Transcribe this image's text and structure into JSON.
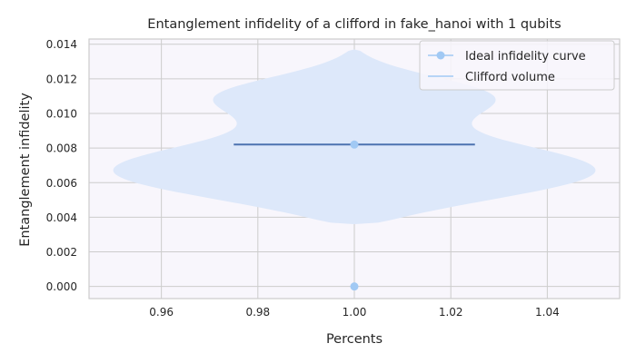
{
  "chart_data": {
    "type": "violin",
    "title": "Entanglement infidelity of a clifford in fake_hanoi with 1 qubits",
    "xlabel": "Percents",
    "ylabel": "Entanglement infidelity",
    "xlim": [
      0.945,
      1.055
    ],
    "ylim": [
      -0.0007,
      0.0143
    ],
    "x_ticks": [
      0.96,
      0.98,
      1.0,
      1.02,
      1.04
    ],
    "x_tick_labels": [
      "0.96",
      "0.98",
      "1.00",
      "1.02",
      "1.04"
    ],
    "y_ticks": [
      0.0,
      0.002,
      0.004,
      0.006,
      0.008,
      0.01,
      0.012,
      0.014
    ],
    "y_tick_labels": [
      "0.000",
      "0.002",
      "0.004",
      "0.006",
      "0.008",
      "0.010",
      "0.012",
      "0.014"
    ],
    "grid": true,
    "legend_position": "top-right",
    "series": [
      {
        "name": "Ideal infidelity curve",
        "kind": "line-marker",
        "x": [
          1.0
        ],
        "y": [
          0.0
        ],
        "color": "#a1c9f4"
      },
      {
        "name": "Clifford volume",
        "kind": "violin",
        "x": 1.0,
        "ymin": 0.0036,
        "ymax": 0.0137,
        "mean": 0.0082,
        "width": 0.05,
        "color": "#a1c9f4"
      }
    ],
    "mean_marker": {
      "x": 1.0,
      "y": 0.0082
    },
    "mean_line_color": "#4c72b0",
    "plot_background": "#f8f6fc",
    "violin_fill": "#dde8fa",
    "grid_color": "#cccccc"
  }
}
